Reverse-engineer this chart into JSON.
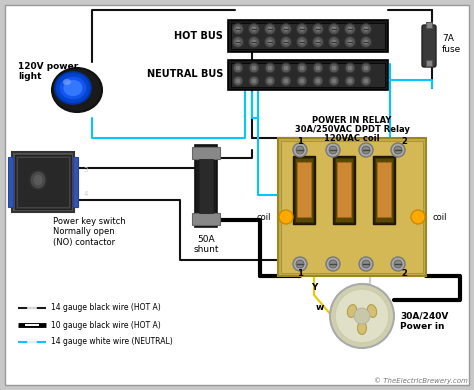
{
  "bg_color": "#c8c8c8",
  "white_bg": "#ffffff",
  "watermark": "© TheElectricBrewery.com",
  "labels": {
    "power_light": "120V power\nlight",
    "hot_bus": "HOT BUS",
    "neutral_bus": "NEUTRAL BUS",
    "fuse": "7A\nfuse",
    "key_switch": "Power key switch\nNormally open\n(NO) contactor",
    "shunt": "50A\nshunt",
    "relay_title_1": "POWER IN RELAY",
    "relay_title_2": "30A/250VAC DPDT Relay",
    "relay_title_3": "120VAC coil",
    "relay_1_top": "1",
    "relay_2_top": "2",
    "relay_coil_left": "coil",
    "relay_coil_right": "coil",
    "relay_1_bot": "1",
    "relay_2_bot": "2",
    "relay_y": "Y",
    "relay_w": "w",
    "power_in": "30A/240V\nPower in"
  },
  "legend": [
    {
      "label": "14 gauge black wire (HOT A)",
      "color": "#1a1a1a",
      "lw": 1.5,
      "dash": true
    },
    {
      "label": "10 gauge black wire (HOT A)",
      "color": "#000000",
      "lw": 3.5,
      "dash": false
    },
    {
      "label": "14 gauge white wire (NEUTRAL)",
      "color": "#00c8ff",
      "lw": 1.5,
      "dash": true
    }
  ],
  "wire_thin_black": "#111111",
  "wire_thick_black": "#000000",
  "wire_blue": "#00c8ff",
  "wire_yellow": "#e8c800",
  "wire_white": "#cccccc"
}
